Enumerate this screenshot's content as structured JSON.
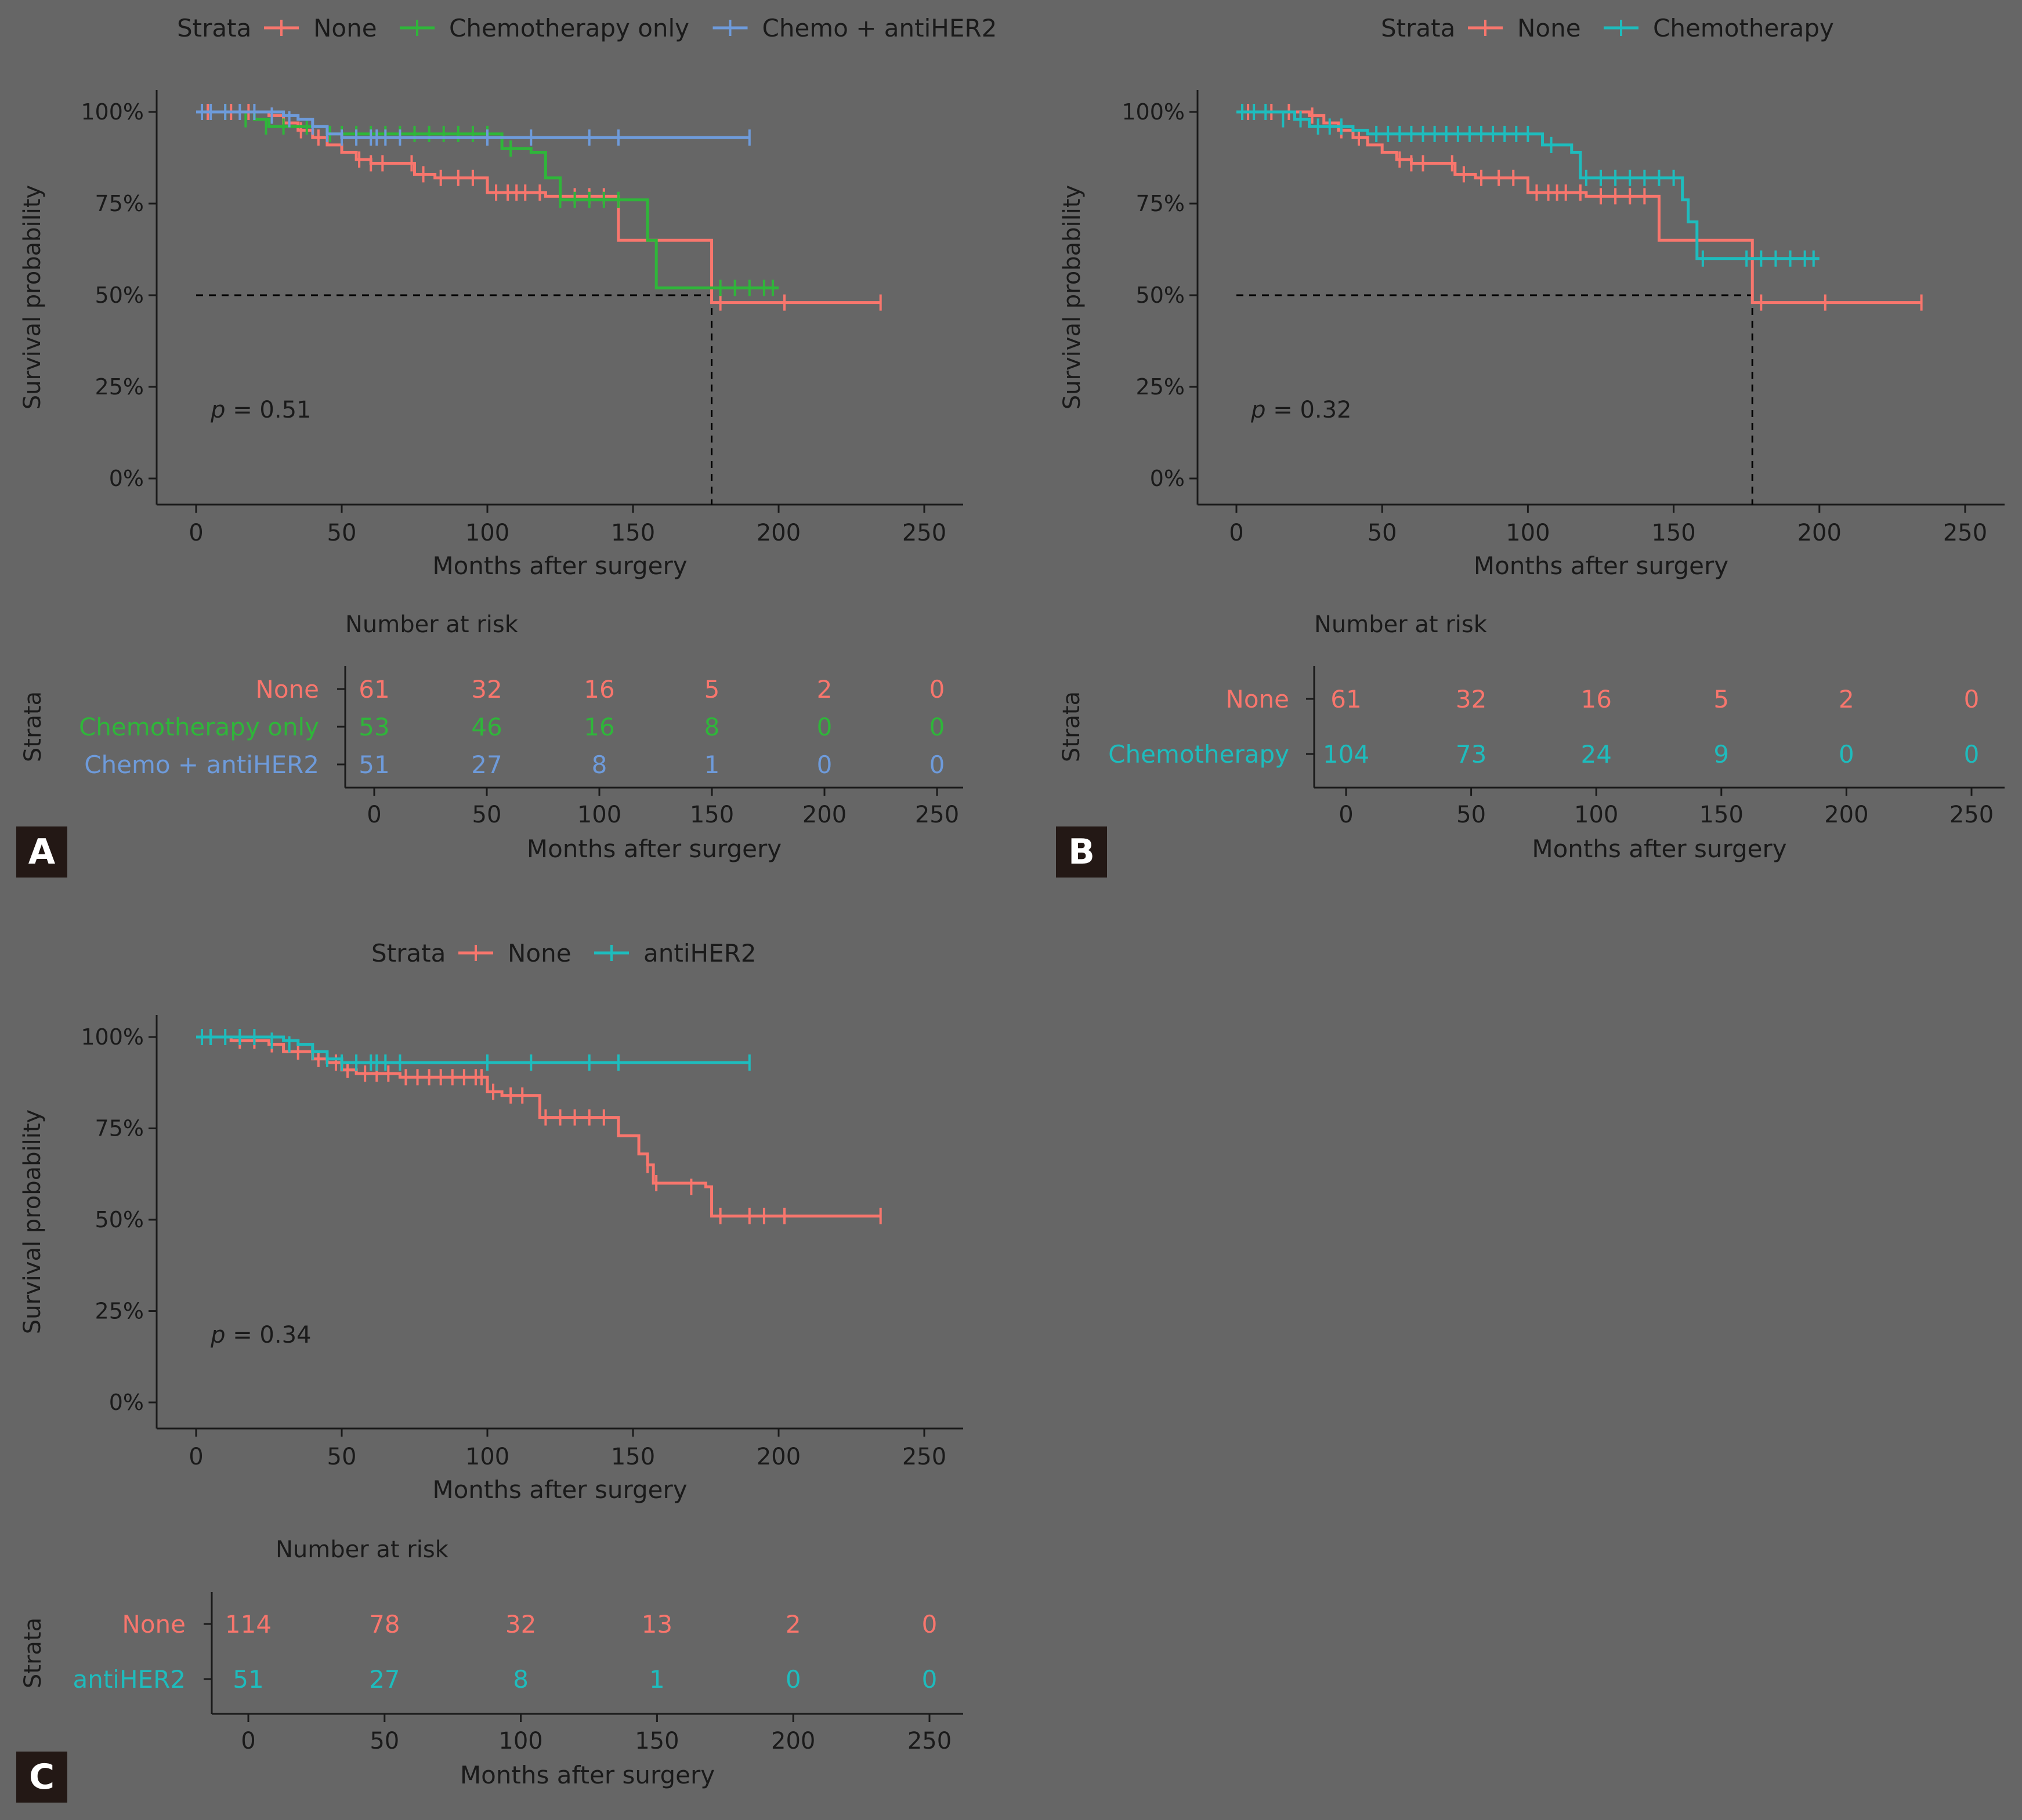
{
  "colors": {
    "background": "#666666",
    "axis": "#1a1a1a",
    "text": "#1a1a1a",
    "none": "#f8766d",
    "chemo_only": "#2fb63a",
    "chemo_antiher2": "#6e9bdb",
    "chemotherapy": "#1ebcbd",
    "antiher2": "#1ebcbd",
    "badge": "#231815",
    "badge_text": "#ffffff"
  },
  "panels": [
    {
      "badge": "A",
      "legend": {
        "title": "Strata",
        "items": [
          {
            "label": "None",
            "color": "#f8766d"
          },
          {
            "label": "Chemotherapy only",
            "color": "#2fb63a"
          },
          {
            "label": "Chemo + antiHER2",
            "color": "#6e9bdb"
          }
        ]
      },
      "pvalue": {
        "p": "p",
        "rest": " = 0.51"
      },
      "risk_table": {
        "title": "Number at risk",
        "ylabel": "Strata",
        "xlabel": "Months after surgery",
        "ticks": [
          "0",
          "50",
          "100",
          "150",
          "200",
          "250"
        ],
        "rows": [
          {
            "label": "None",
            "color": "#f8766d",
            "counts": [
              "61",
              "32",
              "16",
              "5",
              "2",
              "0"
            ]
          },
          {
            "label": "Chemotherapy only",
            "color": "#2fb63a",
            "counts": [
              "53",
              "46",
              "16",
              "8",
              "0",
              "0"
            ]
          },
          {
            "label": "Chemo + antiHER2",
            "color": "#6e9bdb",
            "counts": [
              "51",
              "27",
              "8",
              "1",
              "0",
              "0"
            ]
          }
        ]
      }
    },
    {
      "badge": "B",
      "legend": {
        "title": "Strata",
        "items": [
          {
            "label": "None",
            "color": "#f8766d"
          },
          {
            "label": "Chemotherapy",
            "color": "#1ebcbd"
          }
        ]
      },
      "pvalue": {
        "p": "p",
        "rest": " = 0.32"
      },
      "risk_table": {
        "title": "Number at risk",
        "ylabel": "Strata",
        "xlabel": "Months after surgery",
        "ticks": [
          "0",
          "50",
          "100",
          "150",
          "200",
          "250"
        ],
        "rows": [
          {
            "label": "None",
            "color": "#f8766d",
            "counts": [
              "61",
              "32",
              "16",
              "5",
              "2",
              "0"
            ]
          },
          {
            "label": "Chemotherapy",
            "color": "#1ebcbd",
            "counts": [
              "104",
              "73",
              "24",
              "9",
              "0",
              "0"
            ]
          }
        ]
      }
    },
    {
      "badge": "C",
      "legend": {
        "title": "Strata",
        "items": [
          {
            "label": "None",
            "color": "#f8766d"
          },
          {
            "label": "antiHER2",
            "color": "#1ebcbd"
          }
        ]
      },
      "pvalue": {
        "p": "p",
        "rest": " = 0.34"
      },
      "risk_table": {
        "title": "Number at risk",
        "ylabel": "Strata",
        "xlabel": "Months after surgery",
        "ticks": [
          "0",
          "50",
          "100",
          "150",
          "200",
          "250"
        ],
        "rows": [
          {
            "label": "None",
            "color": "#f8766d",
            "counts": [
              "114",
              "78",
              "32",
              "13",
              "2",
              "0"
            ]
          },
          {
            "label": "antiHER2",
            "color": "#1ebcbd",
            "counts": [
              "51",
              "27",
              "8",
              "1",
              "0",
              "0"
            ]
          }
        ]
      }
    }
  ],
  "chart_data": [
    {
      "type": "line",
      "subtype": "kaplan-meier step curve",
      "panel": "A",
      "xlabel": "Months after surgery",
      "ylabel": "Survival probability",
      "xlim": [
        -12,
        263
      ],
      "ylim": [
        -0.05,
        1.05
      ],
      "x_ticks": [
        0,
        50,
        100,
        150,
        200,
        250
      ],
      "y_ticks": [
        0,
        0.25,
        0.5,
        0.75,
        1.0
      ],
      "y_tick_labels": [
        "0%",
        "25%",
        "50%",
        "75%",
        "100%"
      ],
      "grid": false,
      "legend_position": "top",
      "median_line": {
        "y": 0.5,
        "x": 177
      },
      "series": [
        {
          "name": "None",
          "color": "#f8766d",
          "x": [
            0,
            25,
            30,
            35,
            40,
            45,
            50,
            55,
            60,
            75,
            82,
            100,
            120,
            145,
            155,
            177,
            235
          ],
          "y": [
            1.0,
            0.99,
            0.97,
            0.95,
            0.93,
            0.91,
            0.89,
            0.87,
            0.86,
            0.83,
            0.82,
            0.78,
            0.77,
            0.65,
            0.65,
            0.48,
            0.48
          ],
          "censor_x": [
            4,
            12,
            18,
            26,
            36,
            42,
            56,
            60,
            64,
            74,
            78,
            84,
            90,
            95,
            103,
            107,
            110,
            113,
            118,
            125,
            130,
            135,
            140,
            180,
            202,
            235
          ],
          "censor_y": [
            1.0,
            1.0,
            1.0,
            0.99,
            0.95,
            0.93,
            0.87,
            0.86,
            0.86,
            0.86,
            0.83,
            0.82,
            0.82,
            0.82,
            0.78,
            0.78,
            0.78,
            0.78,
            0.78,
            0.77,
            0.77,
            0.77,
            0.77,
            0.48,
            0.48,
            0.48
          ]
        },
        {
          "name": "Chemotherapy only",
          "color": "#2fb63a",
          "x": [
            0,
            20,
            25,
            45,
            100,
            105,
            115,
            120,
            125,
            148,
            155,
            158,
            200
          ],
          "y": [
            1.0,
            0.98,
            0.96,
            0.94,
            0.94,
            0.9,
            0.89,
            0.82,
            0.76,
            0.76,
            0.65,
            0.52,
            0.52
          ],
          "censor_x": [
            10,
            17,
            24,
            30,
            38,
            46,
            50,
            55,
            60,
            65,
            70,
            75,
            80,
            85,
            90,
            95,
            100,
            108,
            125,
            130,
            135,
            140,
            145,
            180,
            185,
            190,
            195,
            198
          ],
          "censor_y": [
            1.0,
            0.98,
            0.96,
            0.96,
            0.96,
            0.94,
            0.94,
            0.94,
            0.94,
            0.94,
            0.94,
            0.94,
            0.94,
            0.94,
            0.94,
            0.94,
            0.94,
            0.9,
            0.76,
            0.76,
            0.76,
            0.76,
            0.76,
            0.52,
            0.52,
            0.52,
            0.52,
            0.52
          ],
          "end_x": 200
        },
        {
          "name": "Chemo + antiHER2",
          "color": "#6e9bdb",
          "x": [
            0,
            30,
            35,
            40,
            45,
            50,
            55,
            95,
            190
          ],
          "y": [
            1.0,
            0.99,
            0.98,
            0.96,
            0.94,
            0.93,
            0.93,
            0.93,
            0.93
          ],
          "censor_x": [
            2,
            5,
            10,
            15,
            20,
            26,
            32,
            40,
            45,
            50,
            55,
            60,
            62,
            65,
            70,
            100,
            115,
            135,
            145,
            190
          ],
          "censor_y": [
            1.0,
            1.0,
            1.0,
            1.0,
            1.0,
            0.99,
            0.98,
            0.96,
            0.94,
            0.93,
            0.93,
            0.93,
            0.93,
            0.93,
            0.93,
            0.93,
            0.93,
            0.93,
            0.93,
            0.93
          ],
          "end_x": 190
        }
      ]
    },
    {
      "type": "line",
      "subtype": "kaplan-meier step curve",
      "panel": "B",
      "xlabel": "Months after surgery",
      "ylabel": "Survival probability",
      "xlim": [
        -12,
        263
      ],
      "ylim": [
        -0.05,
        1.05
      ],
      "x_ticks": [
        0,
        50,
        100,
        150,
        200,
        250
      ],
      "y_ticks": [
        0,
        0.25,
        0.5,
        0.75,
        1.0
      ],
      "y_tick_labels": [
        "0%",
        "25%",
        "50%",
        "75%",
        "100%"
      ],
      "grid": false,
      "legend_position": "top",
      "median_line": {
        "y": 0.5,
        "x": 177
      },
      "series": [
        {
          "name": "None",
          "color": "#f8766d",
          "x": [
            0,
            25,
            30,
            35,
            40,
            45,
            50,
            55,
            60,
            75,
            82,
            100,
            120,
            145,
            155,
            177,
            235
          ],
          "y": [
            1.0,
            0.99,
            0.97,
            0.95,
            0.93,
            0.91,
            0.89,
            0.87,
            0.86,
            0.83,
            0.82,
            0.78,
            0.77,
            0.65,
            0.65,
            0.48,
            0.48
          ],
          "censor_x": [
            4,
            12,
            18,
            26,
            36,
            42,
            56,
            60,
            64,
            74,
            78,
            84,
            90,
            95,
            103,
            107,
            110,
            113,
            118,
            125,
            130,
            135,
            140,
            180,
            202,
            235
          ],
          "censor_y": [
            1.0,
            1.0,
            1.0,
            0.99,
            0.95,
            0.93,
            0.87,
            0.86,
            0.86,
            0.86,
            0.83,
            0.82,
            0.82,
            0.82,
            0.78,
            0.78,
            0.78,
            0.78,
            0.78,
            0.77,
            0.77,
            0.77,
            0.77,
            0.48,
            0.48,
            0.48
          ]
        },
        {
          "name": "Chemotherapy",
          "color": "#1ebcbd",
          "x": [
            0,
            20,
            25,
            40,
            45,
            50,
            100,
            105,
            115,
            118,
            150,
            153,
            155,
            158,
            170,
            200
          ],
          "y": [
            1.0,
            0.98,
            0.96,
            0.95,
            0.94,
            0.94,
            0.94,
            0.91,
            0.89,
            0.82,
            0.82,
            0.76,
            0.7,
            0.6,
            0.6,
            0.6
          ],
          "censor_x": [
            2,
            6,
            10,
            16,
            22,
            28,
            32,
            36,
            48,
            52,
            56,
            60,
            64,
            68,
            72,
            76,
            80,
            84,
            88,
            92,
            96,
            100,
            108,
            120,
            125,
            130,
            135,
            140,
            145,
            150,
            160,
            175,
            180,
            185,
            190,
            195,
            198
          ],
          "censor_y": [
            1.0,
            1.0,
            1.0,
            0.98,
            0.98,
            0.96,
            0.96,
            0.96,
            0.94,
            0.94,
            0.94,
            0.94,
            0.94,
            0.94,
            0.94,
            0.94,
            0.94,
            0.94,
            0.94,
            0.94,
            0.94,
            0.94,
            0.91,
            0.82,
            0.82,
            0.82,
            0.82,
            0.82,
            0.82,
            0.82,
            0.6,
            0.6,
            0.6,
            0.6,
            0.6,
            0.6,
            0.6
          ],
          "end_x": 200
        }
      ]
    },
    {
      "type": "line",
      "subtype": "kaplan-meier step curve",
      "panel": "C",
      "xlabel": "Months after surgery",
      "ylabel": "Survival probability",
      "xlim": [
        -12,
        263
      ],
      "ylim": [
        -0.05,
        1.05
      ],
      "x_ticks": [
        0,
        50,
        100,
        150,
        200,
        250
      ],
      "y_ticks": [
        0,
        0.25,
        0.5,
        0.75,
        1.0
      ],
      "y_tick_labels": [
        "0%",
        "25%",
        "50%",
        "75%",
        "100%"
      ],
      "grid": false,
      "legend_position": "top",
      "series": [
        {
          "name": "None",
          "color": "#f8766d",
          "x": [
            0,
            12,
            25,
            30,
            40,
            45,
            50,
            55,
            70,
            100,
            105,
            118,
            145,
            152,
            155,
            157,
            175,
            177,
            235
          ],
          "y": [
            1.0,
            0.99,
            0.98,
            0.96,
            0.94,
            0.93,
            0.91,
            0.9,
            0.89,
            0.85,
            0.84,
            0.78,
            0.73,
            0.68,
            0.65,
            0.6,
            0.59,
            0.51,
            0.51
          ],
          "censor_x": [
            5,
            15,
            20,
            26,
            35,
            42,
            48,
            52,
            58,
            62,
            66,
            72,
            76,
            80,
            84,
            88,
            92,
            96,
            98,
            102,
            108,
            112,
            120,
            125,
            130,
            135,
            140,
            155,
            158,
            170,
            180,
            190,
            195,
            202,
            235
          ],
          "censor_y": [
            1.0,
            0.99,
            0.99,
            0.98,
            0.96,
            0.94,
            0.93,
            0.91,
            0.9,
            0.9,
            0.9,
            0.89,
            0.89,
            0.89,
            0.89,
            0.89,
            0.89,
            0.89,
            0.89,
            0.85,
            0.84,
            0.84,
            0.78,
            0.78,
            0.78,
            0.78,
            0.78,
            0.65,
            0.6,
            0.59,
            0.51,
            0.51,
            0.51,
            0.51,
            0.51
          ]
        },
        {
          "name": "antiHER2",
          "color": "#1ebcbd",
          "x": [
            0,
            30,
            35,
            40,
            45,
            50,
            55,
            95,
            190
          ],
          "y": [
            1.0,
            0.99,
            0.98,
            0.96,
            0.94,
            0.93,
            0.93,
            0.93,
            0.93
          ],
          "censor_x": [
            2,
            5,
            10,
            15,
            20,
            26,
            32,
            40,
            45,
            50,
            55,
            60,
            62,
            65,
            70,
            100,
            115,
            135,
            145,
            190
          ],
          "censor_y": [
            1.0,
            1.0,
            1.0,
            1.0,
            1.0,
            0.99,
            0.98,
            0.96,
            0.94,
            0.93,
            0.93,
            0.93,
            0.93,
            0.93,
            0.93,
            0.93,
            0.93,
            0.93,
            0.93,
            0.93
          ],
          "end_x": 190
        }
      ]
    }
  ]
}
